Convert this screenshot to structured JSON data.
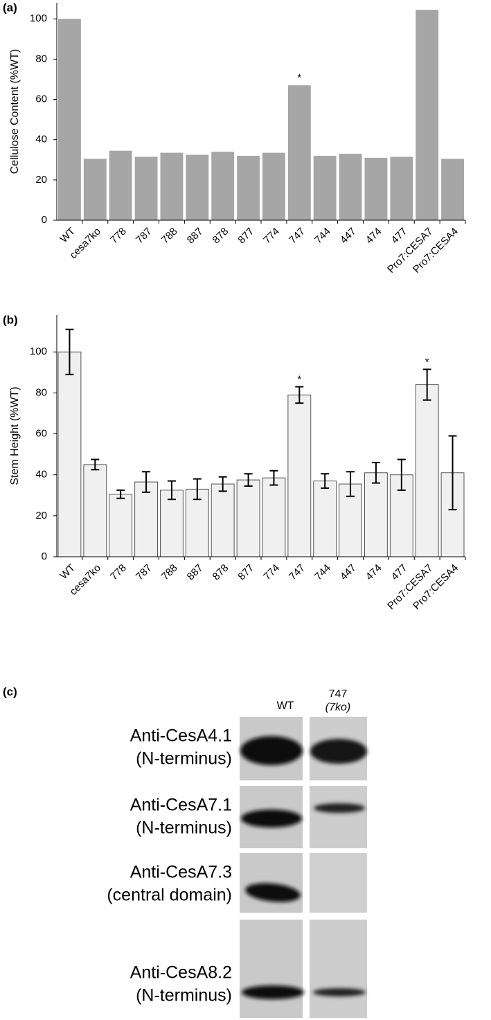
{
  "chart_data": [
    {
      "type": "bar",
      "panel_label": "(a)",
      "y_label": "Cellulose Content (%WT)",
      "categories": [
        "WT",
        "cesa7ko",
        "778",
        "787",
        "788",
        "887",
        "878",
        "877",
        "774",
        "747",
        "744",
        "447",
        "474",
        "477",
        "Pro7:CESA7",
        "Pro7:CESA4"
      ],
      "values": [
        100,
        30.5,
        34.5,
        31.5,
        33.5,
        32.5,
        34,
        32,
        33.5,
        67,
        32,
        33,
        31,
        31.5,
        104.5,
        30.5
      ],
      "color": "#a6a6a6",
      "ylim": [
        0,
        108
      ],
      "yticks": [
        0,
        20,
        40,
        60,
        80,
        100
      ],
      "annotations": [
        {
          "text": "*",
          "x": "747"
        }
      ]
    },
    {
      "type": "bar",
      "panel_label": "(b)",
      "y_label": "Stem Height (%WT)",
      "categories": [
        "WT",
        "cesa7ko",
        "778",
        "787",
        "788",
        "887",
        "878",
        "877",
        "774",
        "747",
        "744",
        "447",
        "474",
        "477",
        "Pro7:CESA7",
        "Pro7:CESA4"
      ],
      "values": [
        100,
        45,
        30.5,
        36.5,
        32.5,
        33,
        35.5,
        37.5,
        38.5,
        79,
        37,
        35.5,
        41,
        40,
        84,
        41
      ],
      "errors": [
        11,
        2.5,
        2,
        5,
        4.5,
        5,
        3.5,
        3,
        3.5,
        4,
        3.5,
        6,
        5,
        7.5,
        7.5,
        18
      ],
      "color": "#f0f0f0",
      "ylim": [
        0,
        118
      ],
      "yticks": [
        0,
        20,
        40,
        60,
        80,
        100
      ],
      "annotations": [
        {
          "text": "*",
          "x": "747"
        },
        {
          "text": "*",
          "x": "Pro7:CESA7"
        }
      ]
    }
  ],
  "blot": {
    "panel_label": "(c)",
    "columns": [
      "WT",
      "747",
      "(7ko)"
    ],
    "rows": [
      [
        "Anti-CesA4.1",
        "(N-terminus)"
      ],
      [
        "Anti-CesA7.1",
        "(N-terminus)"
      ],
      [
        "Anti-CesA7.3",
        "(central domain)"
      ],
      [
        "Anti-CesA8.2",
        "(N-terminus)"
      ]
    ]
  }
}
